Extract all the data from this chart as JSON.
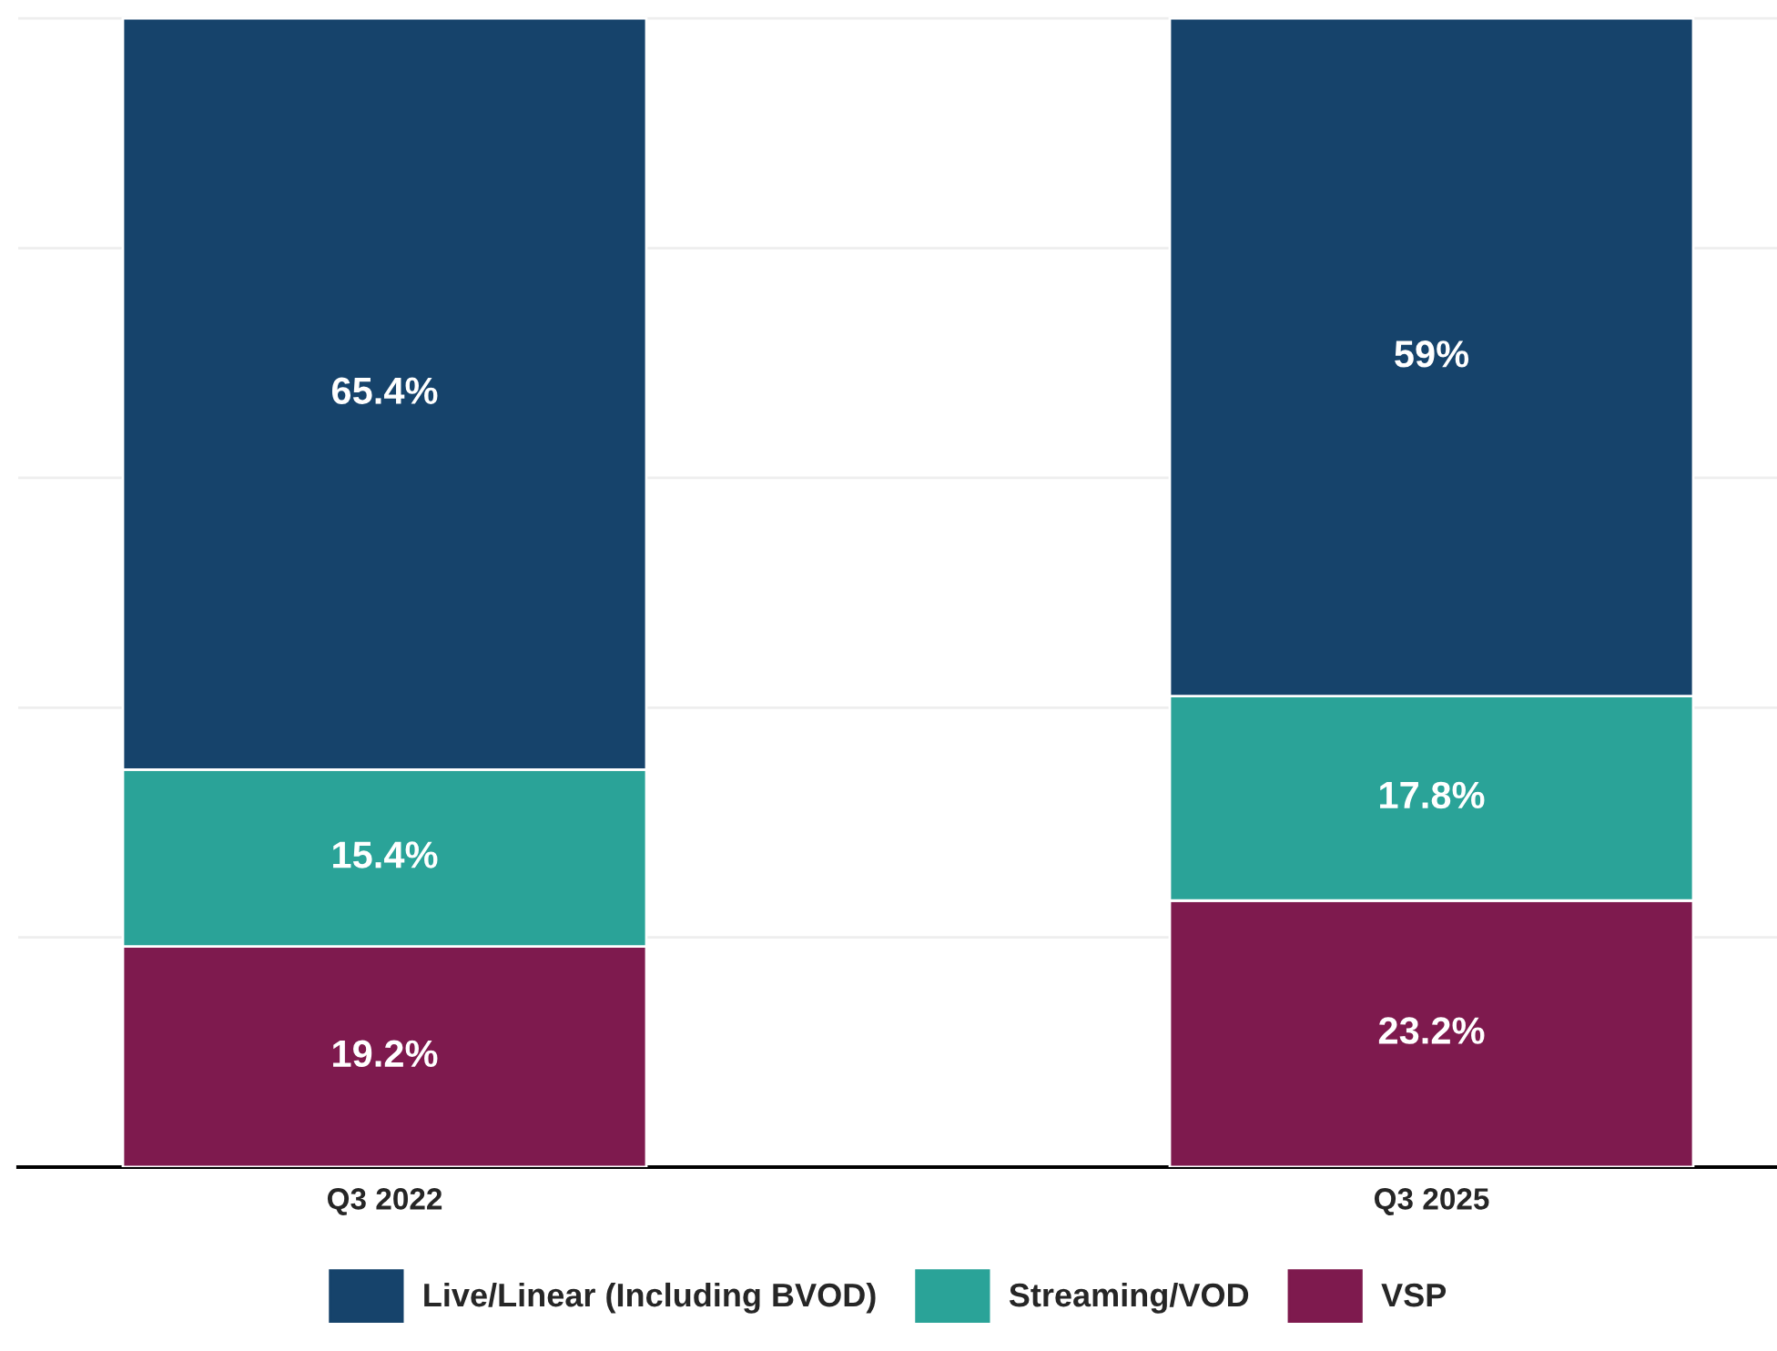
{
  "chart_data": {
    "type": "bar",
    "stacked": true,
    "categories": [
      "Q3 2022",
      "Q3 2025"
    ],
    "series": [
      {
        "name": "VSP",
        "color": "#7e1a4e",
        "values": [
          19.2,
          23.2
        ],
        "value_labels": [
          "19.2%",
          "23.2%"
        ]
      },
      {
        "name": "Streaming/VOD",
        "color": "#2aa398",
        "values": [
          15.4,
          17.8
        ],
        "value_labels": [
          "15.4%",
          "17.8%"
        ]
      },
      {
        "name": "Live/Linear (Including BVOD)",
        "color": "#16436b",
        "values": [
          65.4,
          59
        ],
        "value_labels": [
          "65.4%",
          "59%"
        ]
      }
    ],
    "grid": "y",
    "legend": "bottom",
    "tick_labels": "x"
  }
}
